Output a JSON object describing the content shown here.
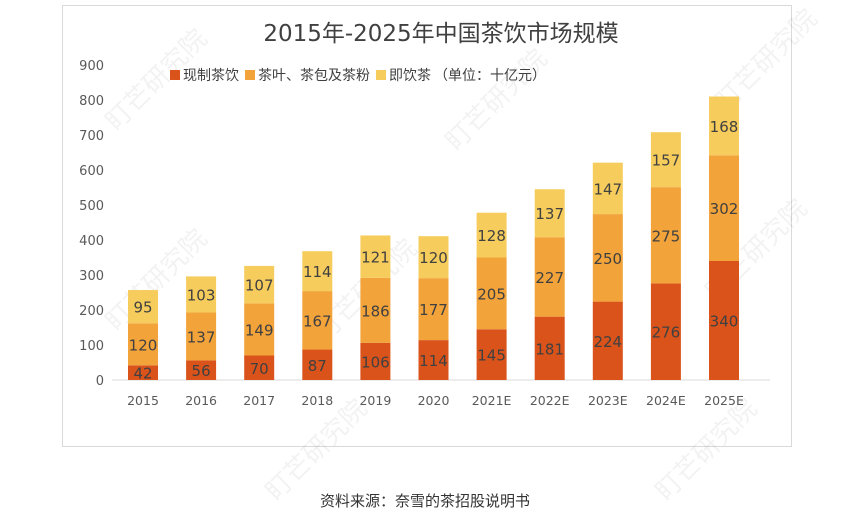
{
  "chart_data": {
    "type": "bar",
    "stacked": true,
    "title": "2015年-2025年中国茶饮市场规模",
    "legend_suffix": "（单位：十亿元）",
    "legend_position": "top",
    "categories": [
      "2015",
      "2016",
      "2017",
      "2018",
      "2019",
      "2020",
      "2021E",
      "2022E",
      "2023E",
      "2024E",
      "2025E"
    ],
    "series": [
      {
        "name": "现制茶饮",
        "color": "#d9531b",
        "values": [
          42,
          56,
          70,
          87,
          106,
          114,
          145,
          181,
          224,
          276,
          340
        ]
      },
      {
        "name": "茶叶、茶包及茶粉",
        "color": "#f2a33a",
        "values": [
          120,
          137,
          149,
          167,
          186,
          177,
          205,
          227,
          250,
          275,
          302
        ]
      },
      {
        "name": "即饮茶",
        "color": "#f6cd5c",
        "values": [
          95,
          103,
          107,
          114,
          121,
          120,
          128,
          137,
          147,
          157,
          168
        ]
      }
    ],
    "ylim": [
      0,
      900
    ],
    "yticks": [
      0,
      100,
      200,
      300,
      400,
      500,
      600,
      700,
      800,
      900
    ],
    "grid": false
  },
  "source": "资料来源：奈雪的茶招股说明书",
  "watermark": "盯芒研究院"
}
